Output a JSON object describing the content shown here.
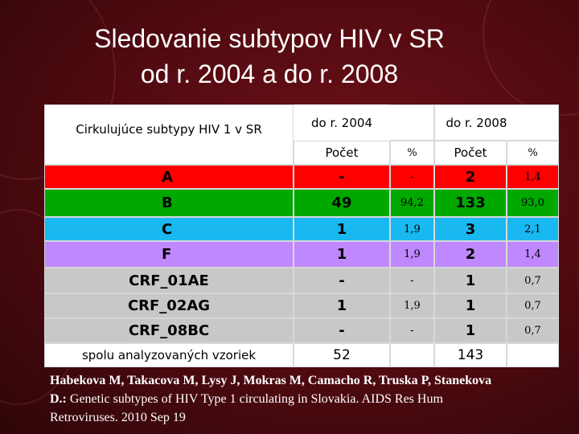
{
  "title": {
    "line1": "Sledovanie subtypov HIV v SR",
    "line2": "od r. 2004 a do r. 2008"
  },
  "table": {
    "header": {
      "subtypes": "Cirkulujúce subtypy HIV 1 v SR",
      "period1": "do r. 2004",
      "period2": "do r. 2008",
      "count1": "Počet",
      "pct1": "%",
      "count2": "Počet",
      "pct2": "%"
    },
    "rows": [
      [
        "A",
        "-",
        "-",
        "2",
        "1,4"
      ],
      [
        "B",
        "49",
        "94,2",
        "133",
        "93,0"
      ],
      [
        "C",
        "1",
        "1,9",
        "3",
        "2,1"
      ],
      [
        "F",
        "1",
        "1,9",
        "2",
        "1,4"
      ],
      [
        "CRF_01AE",
        "-",
        "-",
        "1",
        "0,7"
      ],
      [
        "CRF_02AG",
        "1",
        "1,9",
        "1",
        "0,7"
      ],
      [
        "CRF_08BC",
        "-",
        "-",
        "1",
        "0,7"
      ]
    ],
    "total": {
      "label": "spolu analyzovaných vzoriek",
      "count1": "52",
      "count2": "143"
    }
  },
  "citation": {
    "authors": "Habekova M, Takacova M, Lysy J, Mokras M, Camacho R, Truska P, Stanekova D.:",
    "text": " Genetic subtypes of HIV Type 1 circulating  in Slovakia. AIDS Res Hum Retroviruses. 2010 Sep 19"
  }
}
